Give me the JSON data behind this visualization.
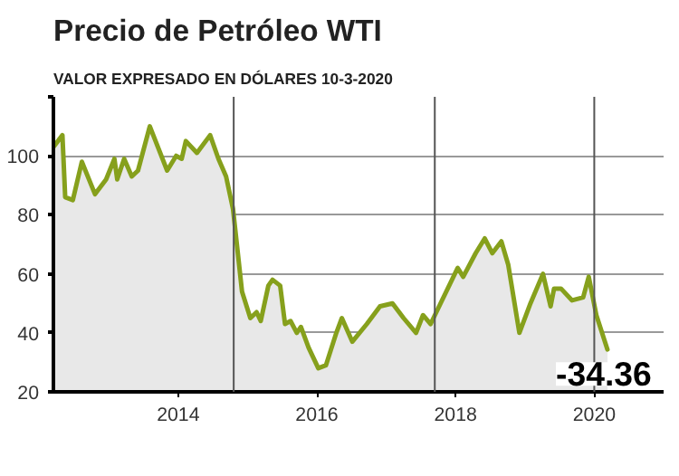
{
  "chart_data": {
    "type": "area",
    "title": "Precio de Petróleo WTI",
    "subtitle": "VALOR EXPRESADO EN DÓLARES 10-3-2020",
    "x": [
      2012.2,
      2012.33,
      2012.37,
      2012.48,
      2012.61,
      2012.8,
      2012.96,
      2013.08,
      2013.12,
      2013.22,
      2013.33,
      2013.42,
      2013.59,
      2013.84,
      2013.97,
      2014.05,
      2014.11,
      2014.27,
      2014.46,
      2014.58,
      2014.69,
      2014.79,
      2014.92,
      2015.04,
      2015.13,
      2015.19,
      2015.3,
      2015.36,
      2015.47,
      2015.54,
      2015.62,
      2015.71,
      2015.77,
      2015.88,
      2016.02,
      2016.13,
      2016.28,
      2016.36,
      2016.51,
      2016.72,
      2016.91,
      2017.09,
      2017.25,
      2017.43,
      2017.53,
      2017.64,
      2018.03,
      2018.11,
      2018.29,
      2018.42,
      2018.53,
      2018.66,
      2018.76,
      2018.92,
      2019.08,
      2019.26,
      2019.37,
      2019.42,
      2019.52,
      2019.68,
      2019.84,
      2019.92,
      2020.03,
      2020.19
    ],
    "series": [
      {
        "color": "#86a01c",
        "values": [
          103,
          107,
          86,
          85,
          98,
          87,
          92,
          99,
          92,
          99,
          93,
          95,
          110,
          95,
          100,
          99,
          105,
          101,
          107,
          99,
          93,
          82,
          54,
          45,
          47,
          44,
          56,
          58,
          56,
          43,
          44,
          40,
          42,
          35,
          28,
          29,
          40,
          45,
          37,
          43,
          49,
          50,
          45,
          40,
          46,
          43,
          62,
          59,
          67,
          72,
          67,
          71,
          63,
          40,
          50,
          60,
          49,
          55,
          55,
          51,
          52,
          59,
          46,
          34.36
        ]
      }
    ],
    "xlim": [
      2012.2,
      2021.0
    ],
    "xticks": [
      2014,
      2016,
      2018,
      2020
    ],
    "ylim": [
      20,
      120
    ],
    "yticks": [
      20,
      40,
      60,
      80,
      100,
      {
        "value": 120,
        "label": null
      }
    ],
    "grid": "y",
    "ref_lines": [
      {
        "axis": "x",
        "value": 2014.8,
        "label": null,
        "color": "#555555"
      },
      {
        "axis": "x",
        "value": 2017.7,
        "label": null,
        "color": "#555555"
      },
      {
        "axis": "x",
        "value": 2020.0,
        "label": null,
        "color": "#555555"
      }
    ],
    "annotations": [
      {
        "text": "-34.36",
        "x": 2020.19,
        "y": 34.36
      }
    ]
  }
}
